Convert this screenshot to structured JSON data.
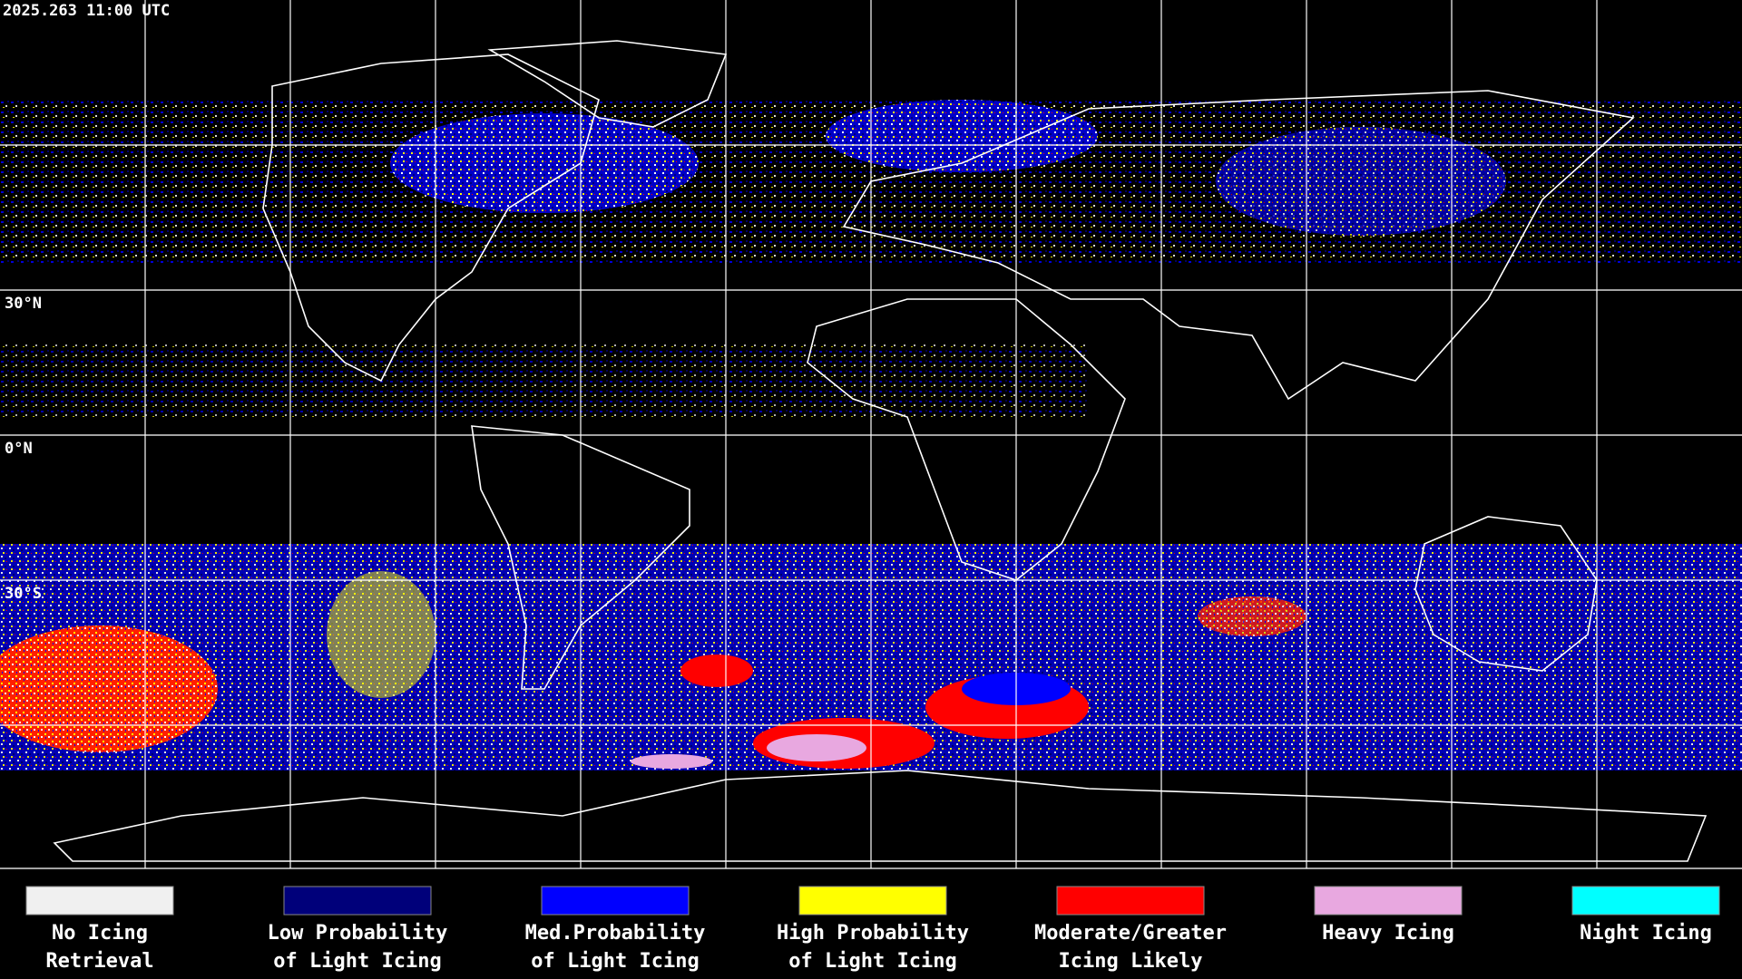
{
  "header": {
    "timestamp": "2025.263 11:00 UTC"
  },
  "map": {
    "latitude_labels": [
      "30°N",
      "0°N",
      "30°S"
    ]
  },
  "legend": {
    "items": [
      {
        "color": "#f0f0f0",
        "lines": [
          "No Icing",
          "Retrieval"
        ]
      },
      {
        "color": "#00007a",
        "lines": [
          "Low Probability",
          "of Light Icing"
        ]
      },
      {
        "color": "#0000ff",
        "lines": [
          "Med.Probability",
          "of Light Icing"
        ]
      },
      {
        "color": "#ffff00",
        "lines": [
          "High Probability",
          "of Light Icing"
        ]
      },
      {
        "color": "#ff0000",
        "lines": [
          "Moderate/Greater",
          "Icing Likely"
        ]
      },
      {
        "color": "#e8a8e0",
        "lines": [
          "Heavy Icing"
        ]
      },
      {
        "color": "#00ffff",
        "lines": [
          "Night Icing"
        ]
      }
    ]
  }
}
